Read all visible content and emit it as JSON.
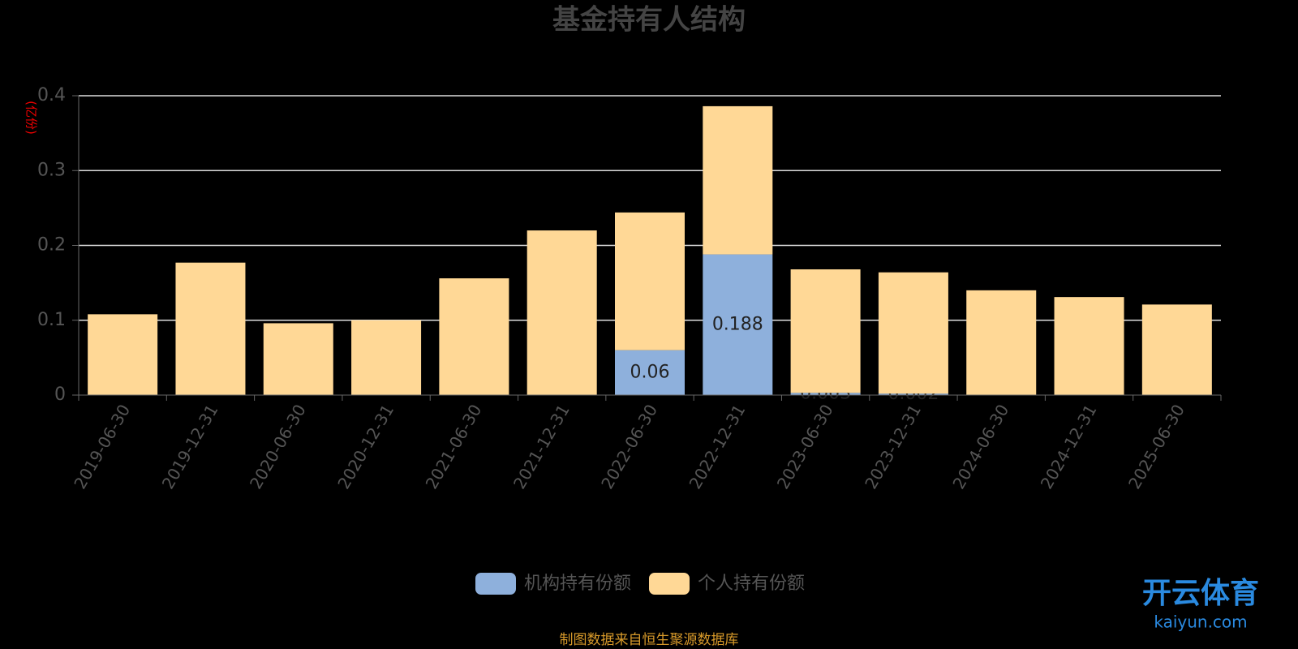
{
  "chart_data": {
    "type": "stacked-bar",
    "title": "基金持有人结构",
    "y_label": "(亿份)",
    "categories": [
      "2019-06-30",
      "2019-12-31",
      "2020-06-30",
      "2020-12-31",
      "2021-06-30",
      "2021-12-31",
      "2022-06-30",
      "2022-12-31",
      "2023-06-30",
      "2023-12-31",
      "2024-06-30",
      "2024-12-31",
      "2025-06-30"
    ],
    "series": [
      {
        "name": "机构持有份额",
        "color": "#8eb0dc",
        "values": [
          0,
          0,
          0,
          0,
          0,
          0,
          0.06,
          0.188,
          0.003,
          0.002,
          0,
          0,
          0
        ]
      },
      {
        "name": "个人持有份额",
        "color": "#ffd896",
        "values": [
          0.108,
          0.177,
          0.096,
          0.1,
          0.156,
          0.22,
          0.184,
          0.198,
          0.165,
          0.162,
          0.14,
          0.131,
          0.121
        ]
      }
    ],
    "ylim": [
      0,
      0.4
    ],
    "yticks": [
      0,
      0.1,
      0.2,
      0.3,
      0.4
    ],
    "grid": true,
    "source": "制图数据来自恒生聚源数据库",
    "watermark": "开云体育",
    "watermark_url": "kaiyun.com"
  }
}
